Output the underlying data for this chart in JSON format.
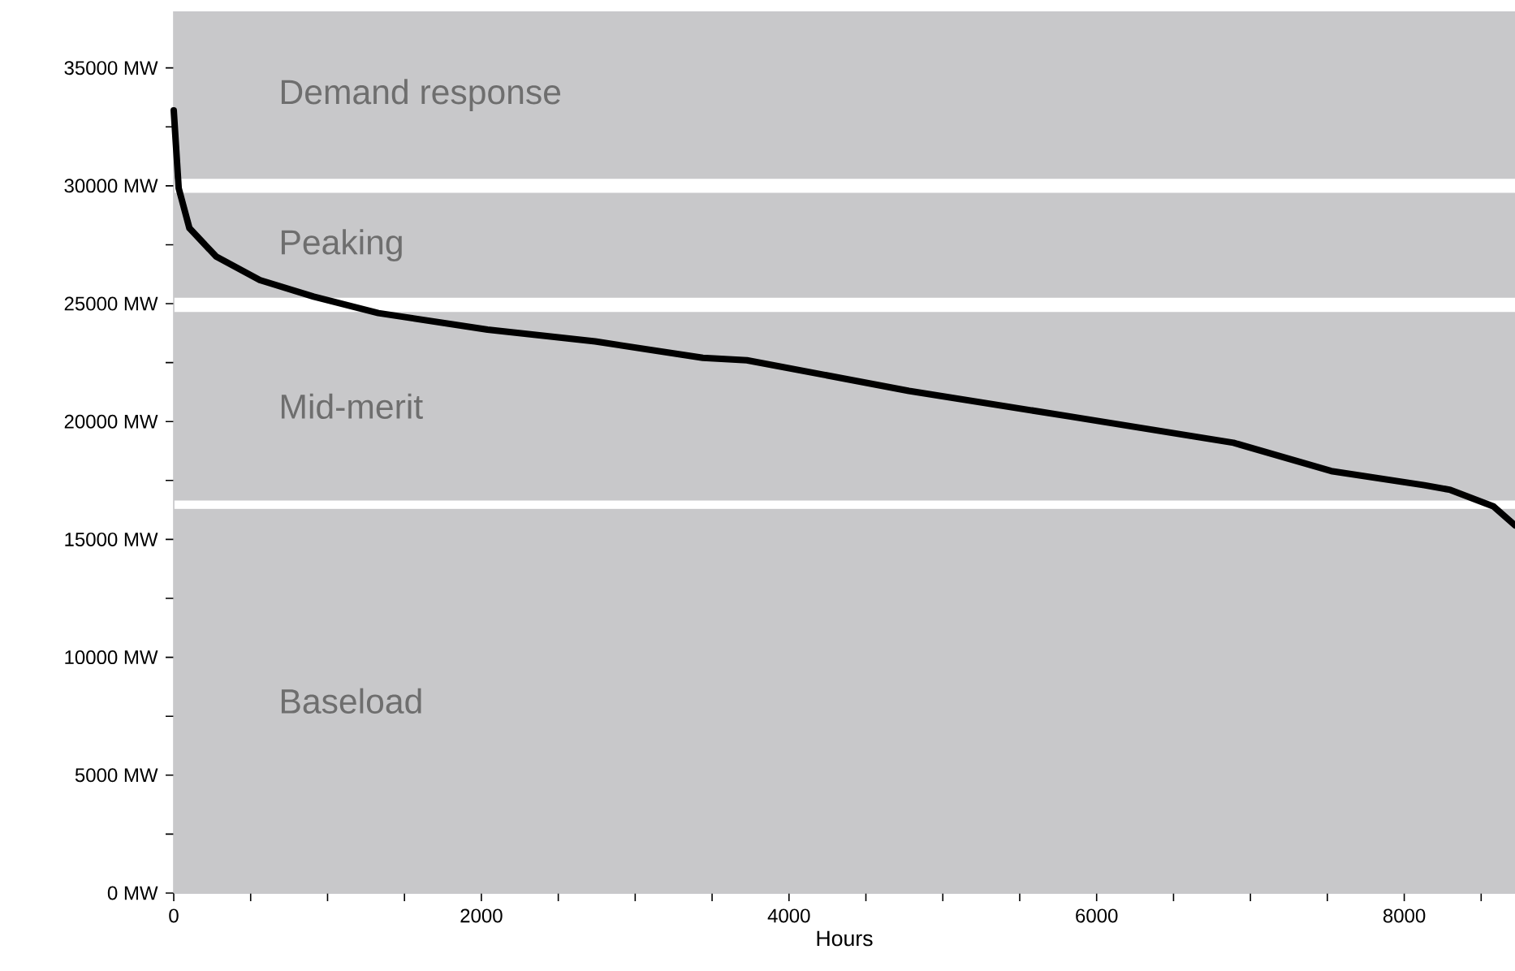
{
  "chart_data": {
    "type": "line",
    "xlabel": "Hours",
    "x": [
      0,
      32,
      102,
      276,
      560,
      910,
      1330,
      2040,
      2740,
      3440,
      3726,
      4780,
      5840,
      6890,
      7525,
      8130,
      8300,
      8580,
      8720
    ],
    "series": [
      {
        "color": "#000000",
        "values": [
          33200,
          29900,
          28200,
          27000,
          26000,
          25300,
          24600,
          23900,
          23400,
          22700,
          22600,
          21300,
          20200,
          19100,
          17900,
          17300,
          17100,
          16400,
          15600
        ]
      }
    ],
    "xticks": [
      0,
      {
        "value": 500,
        "label": null
      },
      {
        "value": 1000,
        "label": null
      },
      {
        "value": 1500,
        "label": null
      },
      2000,
      {
        "value": 2500,
        "label": null
      },
      {
        "value": 3000,
        "label": null
      },
      {
        "value": 3500,
        "label": null
      },
      4000,
      {
        "value": 4500,
        "label": null
      },
      {
        "value": 5000,
        "label": null
      },
      {
        "value": 5500,
        "label": null
      },
      6000,
      {
        "value": 6500,
        "label": null
      },
      {
        "value": 7000,
        "label": null
      },
      {
        "value": 7500,
        "label": null
      },
      8000,
      {
        "value": 8500,
        "label": null
      }
    ],
    "yticks": [
      {
        "value": 0,
        "label": "0 MW"
      },
      {
        "value": 2500,
        "label": null
      },
      {
        "value": 5000,
        "label": "5000 MW"
      },
      {
        "value": 7500,
        "label": null
      },
      {
        "value": 10000,
        "label": "10000 MW"
      },
      {
        "value": 12500,
        "label": null
      },
      {
        "value": 15000,
        "label": "15000 MW"
      },
      {
        "value": 17500,
        "label": null
      },
      {
        "value": 20000,
        "label": "20000 MW"
      },
      {
        "value": 22500,
        "label": null
      },
      {
        "value": 25000,
        "label": "25000 MW"
      },
      {
        "value": 27500,
        "label": null
      },
      {
        "value": 30000,
        "label": "30000 MW"
      },
      {
        "value": 32500,
        "label": null
      },
      {
        "value": 35000,
        "label": "35000 MW"
      }
    ],
    "xlim": [
      0,
      8720
    ],
    "ylim": [
      0,
      37400
    ],
    "bands": [
      {
        "axis": "y",
        "from": 0,
        "to": 16300,
        "label": "Baseload",
        "color": "#c8c8ca"
      },
      {
        "axis": "y",
        "from": 16650,
        "to": 24650,
        "label": "Mid-merit",
        "color": "#c8c8ca"
      },
      {
        "axis": "y",
        "from": 25250,
        "to": 29700,
        "label": "Peaking",
        "color": "#c8c8ca"
      },
      {
        "axis": "y",
        "from": 30300,
        "to": 37400,
        "label": "Demand response",
        "color": "#c8c8ca"
      }
    ],
    "marker": "none",
    "line_style": "solid",
    "grid": false
  }
}
